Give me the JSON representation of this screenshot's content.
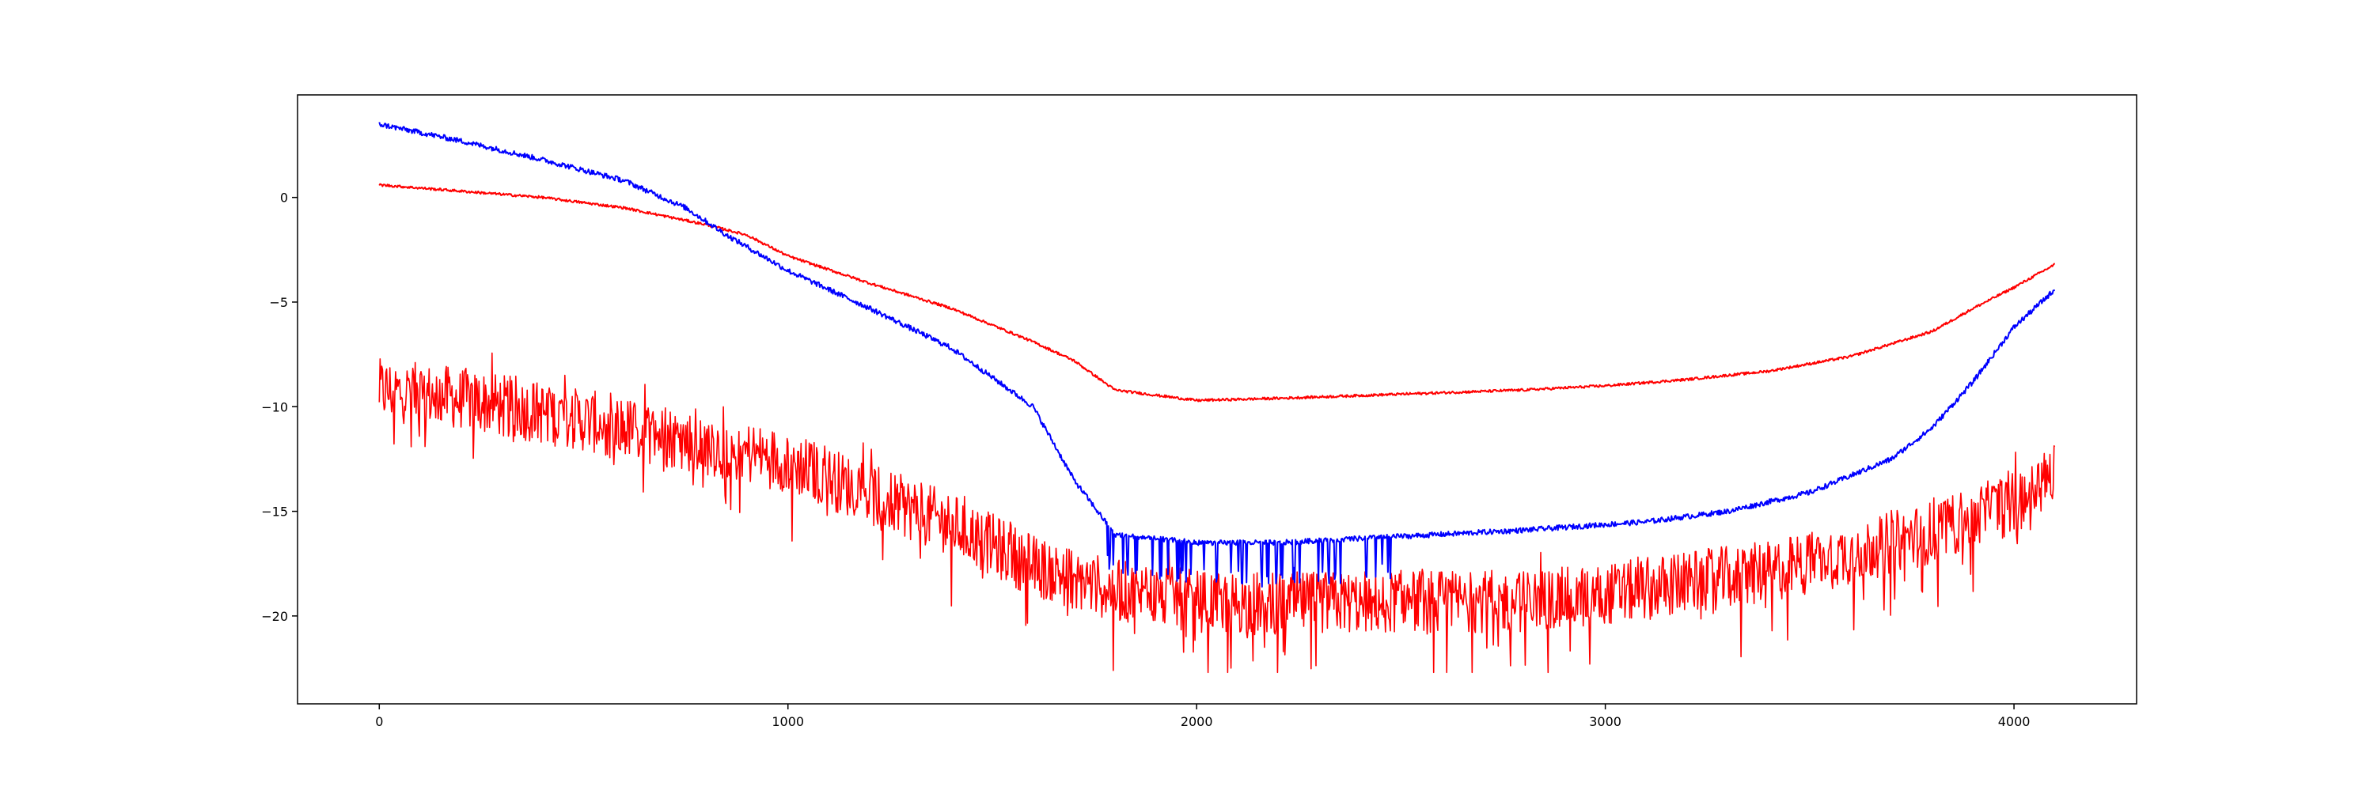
{
  "chart_data": {
    "type": "line",
    "title": "",
    "xlabel": "",
    "ylabel": "",
    "xlim": [
      -200,
      4300
    ],
    "ylim": [
      -24.2,
      4.9
    ],
    "grid": false,
    "legend": "none",
    "x_ticks": [
      0,
      1000,
      2000,
      3000,
      4000
    ],
    "y_ticks": [
      0,
      -5,
      -10,
      -15,
      -20
    ],
    "x_tick_labels": [
      "0",
      "1000",
      "2000",
      "3000",
      "4000"
    ],
    "y_tick_labels": [
      "0",
      "−5",
      "−10",
      "−15",
      "−20"
    ],
    "series": [
      {
        "color": "#0000ff",
        "noise": "fine, with downward spikes to about -18 between x≈1800 and x≈2500",
        "points": [
          [
            0,
            3.5
          ],
          [
            200,
            2.7
          ],
          [
            400,
            1.8
          ],
          [
            600,
            0.8
          ],
          [
            750,
            -0.5
          ],
          [
            850,
            -1.8
          ],
          [
            1000,
            -3.5
          ],
          [
            1200,
            -5.3
          ],
          [
            1400,
            -7.2
          ],
          [
            1600,
            -10.0
          ],
          [
            1700,
            -13.5
          ],
          [
            1800,
            -16.1
          ],
          [
            2000,
            -16.5
          ],
          [
            2200,
            -16.5
          ],
          [
            2500,
            -16.2
          ],
          [
            2800,
            -15.9
          ],
          [
            3100,
            -15.5
          ],
          [
            3300,
            -15.0
          ],
          [
            3500,
            -14.1
          ],
          [
            3700,
            -12.5
          ],
          [
            3800,
            -11.0
          ],
          [
            3900,
            -8.8
          ],
          [
            4000,
            -6.2
          ],
          [
            4100,
            -4.4
          ]
        ]
      },
      {
        "color": "#ff0000",
        "noise": "slight",
        "points": [
          [
            0,
            0.6
          ],
          [
            200,
            0.3
          ],
          [
            400,
            0.0
          ],
          [
            600,
            -0.5
          ],
          [
            800,
            -1.3
          ],
          [
            900,
            -1.8
          ],
          [
            1000,
            -2.8
          ],
          [
            1200,
            -4.1
          ],
          [
            1400,
            -5.3
          ],
          [
            1600,
            -6.9
          ],
          [
            1700,
            -7.8
          ],
          [
            1800,
            -9.2
          ],
          [
            2000,
            -9.7
          ],
          [
            2200,
            -9.6
          ],
          [
            2500,
            -9.4
          ],
          [
            2800,
            -9.2
          ],
          [
            3000,
            -9.0
          ],
          [
            3200,
            -8.7
          ],
          [
            3400,
            -8.3
          ],
          [
            3600,
            -7.6
          ],
          [
            3800,
            -6.4
          ],
          [
            3900,
            -5.3
          ],
          [
            4000,
            -4.3
          ],
          [
            4100,
            -3.2
          ]
        ]
      },
      {
        "color": "#ff0000",
        "noise": "heavy, amplitude about ±2, dips to about -22.8",
        "points": [
          [
            0,
            -9.2
          ],
          [
            200,
            -9.6
          ],
          [
            400,
            -10.3
          ],
          [
            600,
            -11.0
          ],
          [
            800,
            -11.8
          ],
          [
            1000,
            -12.6
          ],
          [
            1200,
            -14.2
          ],
          [
            1400,
            -15.6
          ],
          [
            1600,
            -17.6
          ],
          [
            1800,
            -18.8
          ],
          [
            2000,
            -19.3
          ],
          [
            2200,
            -19.4
          ],
          [
            2500,
            -19.3
          ],
          [
            2800,
            -19.3
          ],
          [
            3000,
            -19.0
          ],
          [
            3200,
            -18.4
          ],
          [
            3400,
            -17.9
          ],
          [
            3600,
            -17.0
          ],
          [
            3800,
            -16.0
          ],
          [
            4000,
            -14.6
          ],
          [
            4100,
            -13.2
          ]
        ]
      }
    ]
  }
}
